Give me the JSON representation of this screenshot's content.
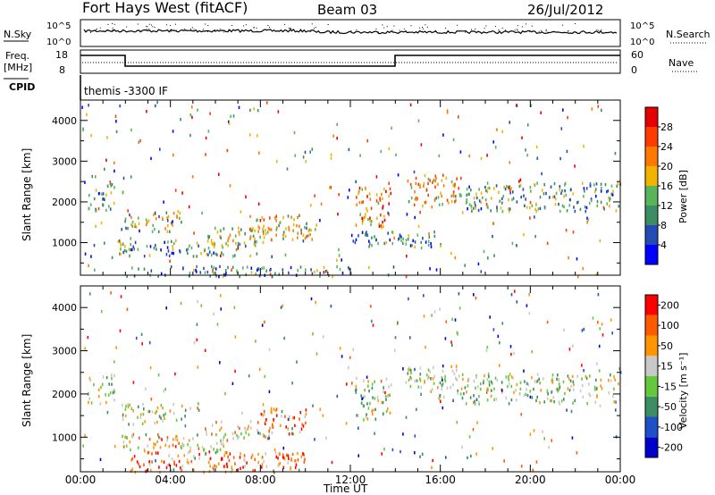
{
  "header": {
    "station": "Fort Hays West (fitACF)",
    "beam": "Beam 03",
    "date": "26/Jul/2012"
  },
  "strip": {
    "nsky_label": "N.Sky",
    "nsky_ticks": [
      "10^5",
      "10^0"
    ],
    "nsearch_label": "N.Search",
    "nsearch_ticks": [
      "10^5",
      "10^0"
    ],
    "freq_label_top": "Freq.",
    "freq_label_unit": "[MHz]",
    "freq_ticks": [
      "18",
      "8"
    ],
    "nave_label": "Nave",
    "nave_ticks": [
      "60",
      "0"
    ],
    "cpid_label": "CPID",
    "cpid_value": "themis -3300 IF"
  },
  "chart_data": [
    {
      "type": "heatmap",
      "panel": "power",
      "ylabel": "Slant Range [km]",
      "yticks": [
        1000,
        2000,
        3000,
        4000
      ],
      "ylim": [
        200,
        4500
      ],
      "xlim": [
        0,
        24
      ],
      "colorbar_label": "Power [dB]",
      "colorbar_ticks": [
        "4",
        "8",
        "12",
        "16",
        "20",
        "24",
        "28"
      ],
      "colorbar_colors": [
        "#0000ff",
        "#234bb3",
        "#3c8c64",
        "#5ab45a",
        "#f0b400",
        "#ff7800",
        "#ff3c00",
        "#e60000"
      ],
      "regions": [
        {
          "t0": 0.3,
          "t1": 1.5,
          "r0": 1800,
          "r1": 2500,
          "level": 0.3
        },
        {
          "t0": 1.8,
          "t1": 4.5,
          "r0": 1300,
          "r1": 1800,
          "level": 0.45
        },
        {
          "t0": 1.5,
          "t1": 8.0,
          "r0": 700,
          "r1": 1100,
          "level": 0.35
        },
        {
          "t0": 5.5,
          "t1": 8.5,
          "r0": 1000,
          "r1": 1400,
          "level": 0.5
        },
        {
          "t0": 7.5,
          "t1": 10.5,
          "r0": 1100,
          "r1": 1700,
          "level": 0.55
        },
        {
          "t0": 12.2,
          "t1": 13.8,
          "r0": 1400,
          "r1": 2400,
          "level": 0.7
        },
        {
          "t0": 14.5,
          "t1": 17.0,
          "r0": 1900,
          "r1": 2700,
          "level": 0.6
        },
        {
          "t0": 17.0,
          "t1": 24.0,
          "r0": 1800,
          "r1": 2500,
          "level": 0.35
        },
        {
          "t0": 12.0,
          "t1": 16.0,
          "r0": 900,
          "r1": 1300,
          "level": 0.3
        },
        {
          "t0": 2.0,
          "t1": 12.0,
          "r0": 200,
          "r1": 450,
          "level": 0.3
        }
      ]
    },
    {
      "type": "heatmap",
      "panel": "velocity",
      "ylabel": "Slant Range [km]",
      "yticks": [
        1000,
        2000,
        3000,
        4000
      ],
      "ylim": [
        200,
        4500
      ],
      "xlim": [
        0,
        24
      ],
      "xlabel": "Time UT",
      "xticks": [
        "00:00",
        "04:00",
        "08:00",
        "12:00",
        "16:00",
        "20:00",
        "00:00"
      ],
      "colorbar_label": "Velocity [m s⁻¹]",
      "colorbar_ticks": [
        "200",
        "100",
        "50",
        "15",
        "-15",
        "-50",
        "-100",
        "-200"
      ],
      "colorbar_colors": [
        "#0000cc",
        "#1e50c8",
        "#3c8c64",
        "#64c83c",
        "#c8c8c8",
        "#ff9600",
        "#ff5a00",
        "#ff0000"
      ],
      "regions": [
        {
          "t0": 0.3,
          "t1": 1.5,
          "r0": 1800,
          "r1": 2500,
          "level": 0.5
        },
        {
          "t0": 1.8,
          "t1": 4.5,
          "r0": 1300,
          "r1": 1800,
          "level": 0.5
        },
        {
          "t0": 1.5,
          "t1": 6.5,
          "r0": 700,
          "r1": 1100,
          "level": 0.6
        },
        {
          "t0": 5.5,
          "t1": 8.5,
          "r0": 1000,
          "r1": 1400,
          "level": 0.65
        },
        {
          "t0": 8.0,
          "t1": 10.0,
          "r0": 1100,
          "r1": 1700,
          "level": 0.75
        },
        {
          "t0": 12.2,
          "t1": 13.8,
          "r0": 1400,
          "r1": 2400,
          "level": 0.5
        },
        {
          "t0": 14.5,
          "t1": 17.0,
          "r0": 1900,
          "r1": 2700,
          "level": 0.5
        },
        {
          "t0": 17.0,
          "t1": 24.0,
          "r0": 1800,
          "r1": 2500,
          "level": 0.5
        },
        {
          "t0": 2.0,
          "t1": 10.0,
          "r0": 200,
          "r1": 700,
          "level": 0.8
        }
      ]
    }
  ]
}
